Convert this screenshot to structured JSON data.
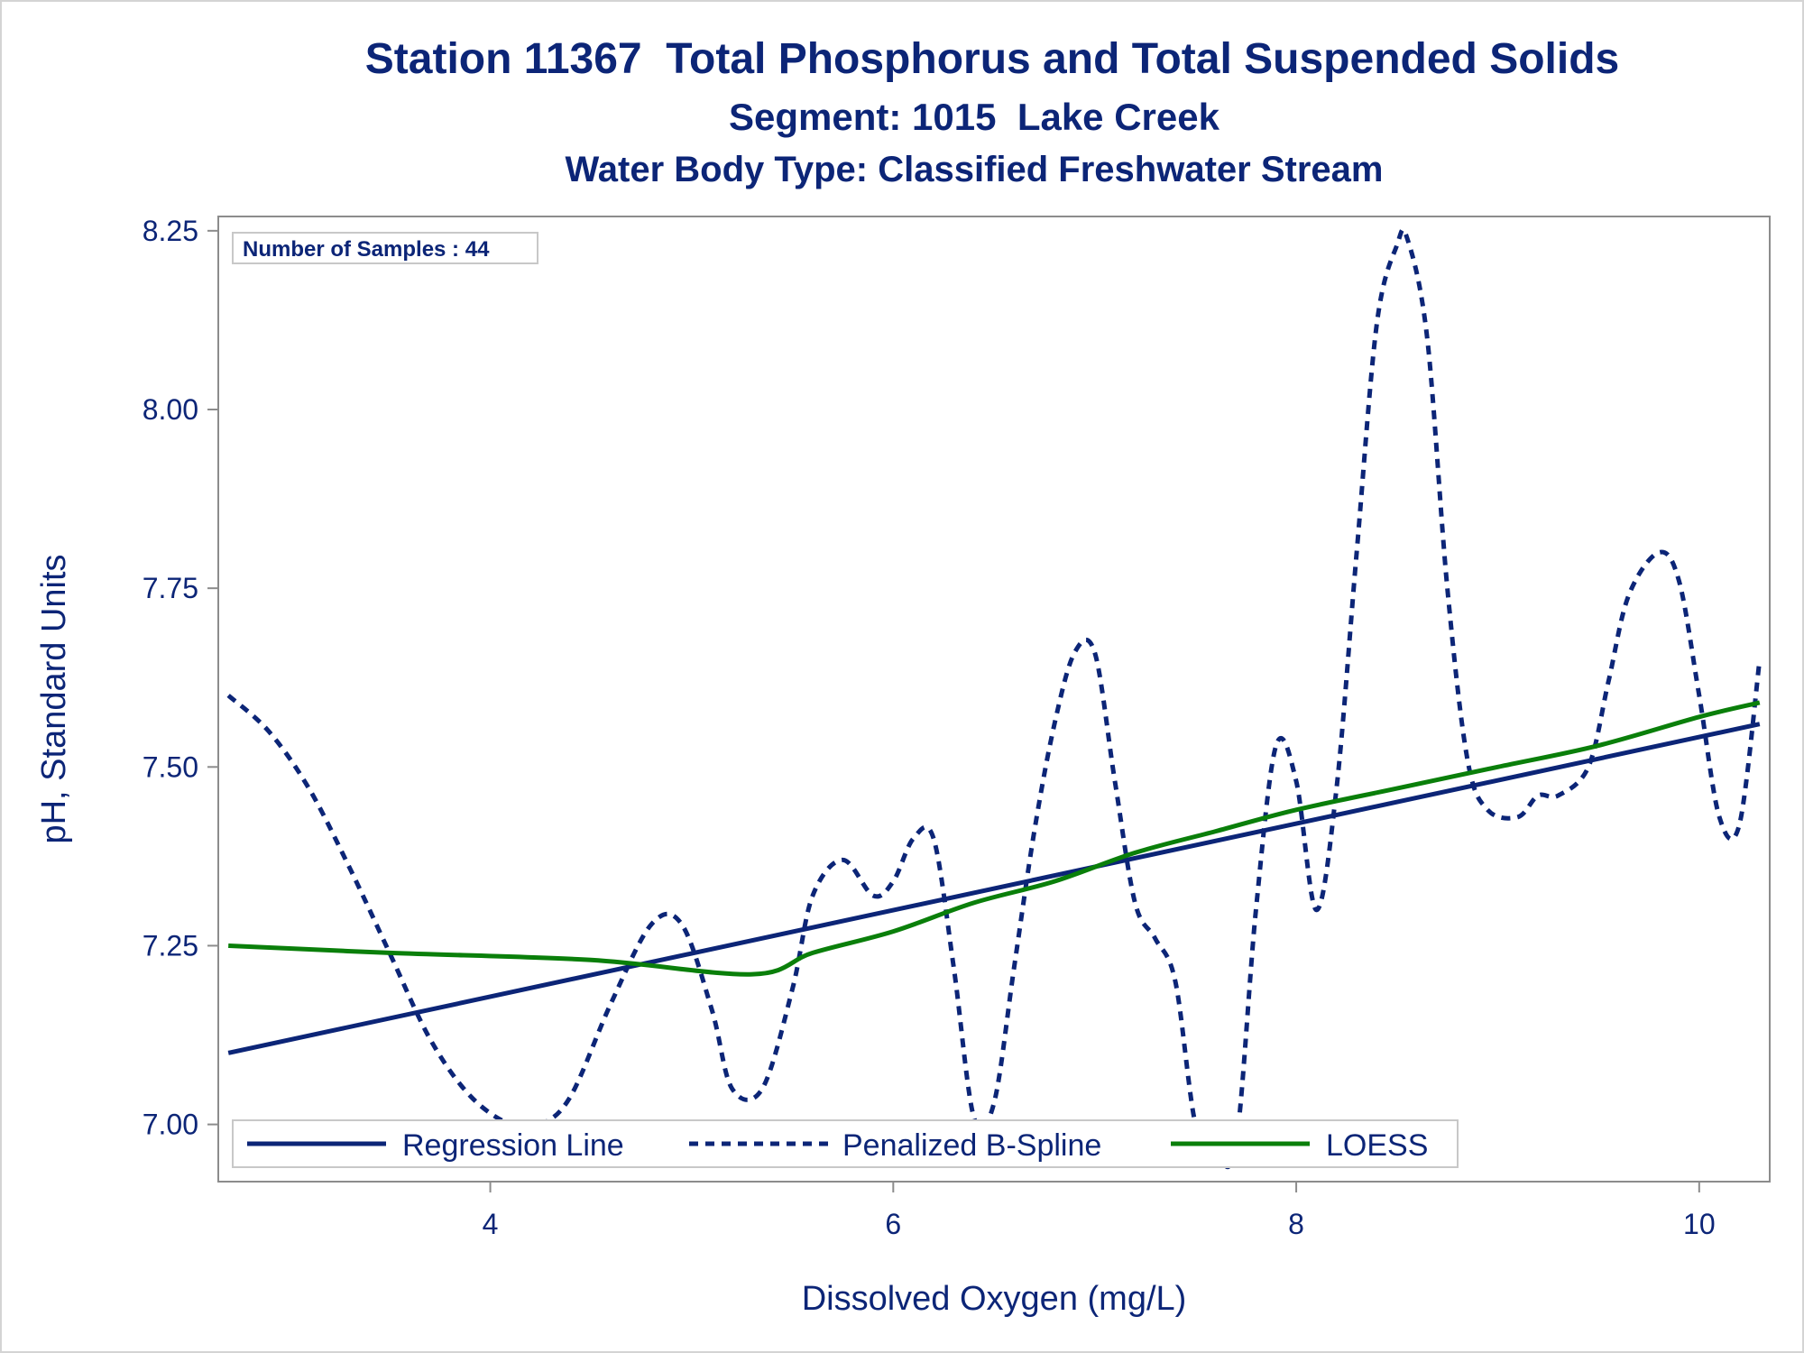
{
  "chart_data": {
    "type": "line",
    "title": "Station 11367  Total Phosphorus and Total Suspended Solids",
    "subtitle": "Segment: 1015  Lake Creek",
    "subtitle2": "Water Body Type: Classified Freshwater Stream",
    "xlabel": "Dissolved Oxygen (mg/L)",
    "ylabel": "pH, Standard Units",
    "xlim": [
      2.65,
      10.35
    ],
    "ylim": [
      6.92,
      8.27
    ],
    "xticks": [
      4,
      6,
      8,
      10
    ],
    "yticks": [
      7.0,
      7.25,
      7.5,
      7.75,
      8.0,
      8.25
    ],
    "ytick_labels": [
      "7.00",
      "7.25",
      "7.50",
      "7.75",
      "8.00",
      "8.25"
    ],
    "grid": false,
    "legend_position": "bottom-left inside",
    "inset_label": "Number of Samples : 44",
    "series": [
      {
        "name": "Regression Line",
        "color": "#0c2577",
        "style": "solid",
        "x": [
          2.7,
          10.3
        ],
        "y": [
          7.1,
          7.56
        ]
      },
      {
        "name": "Penalized B-Spline",
        "color": "#0c2577",
        "style": "dashed",
        "x": [
          2.7,
          2.9,
          3.1,
          3.3,
          3.5,
          3.7,
          3.9,
          4.1,
          4.25,
          4.4,
          4.6,
          4.8,
          4.95,
          5.1,
          5.2,
          5.35,
          5.5,
          5.6,
          5.75,
          5.9,
          6.0,
          6.1,
          6.2,
          6.3,
          6.4,
          6.5,
          6.6,
          6.7,
          6.8,
          6.9,
          7.0,
          7.1,
          7.2,
          7.3,
          7.4,
          7.5,
          7.6,
          7.7,
          7.8,
          7.9,
          8.0,
          8.1,
          8.2,
          8.3,
          8.4,
          8.5,
          8.55,
          8.65,
          8.75,
          8.85,
          8.95,
          9.1,
          9.2,
          9.3,
          9.45,
          9.55,
          9.65,
          9.8,
          9.9,
          10.0,
          10.1,
          10.2,
          10.3
        ],
        "y": [
          7.6,
          7.55,
          7.47,
          7.36,
          7.24,
          7.12,
          7.04,
          7.0,
          7.0,
          7.04,
          7.17,
          7.28,
          7.28,
          7.16,
          7.05,
          7.05,
          7.19,
          7.32,
          7.37,
          7.32,
          7.34,
          7.4,
          7.4,
          7.22,
          7.01,
          7.03,
          7.22,
          7.41,
          7.56,
          7.66,
          7.66,
          7.48,
          7.31,
          7.26,
          7.2,
          7.0,
          6.96,
          6.97,
          7.3,
          7.53,
          7.48,
          7.3,
          7.47,
          7.8,
          8.12,
          8.23,
          8.24,
          8.1,
          7.75,
          7.51,
          7.44,
          7.43,
          7.46,
          7.46,
          7.5,
          7.62,
          7.74,
          7.8,
          7.76,
          7.6,
          7.43,
          7.42,
          7.65
        ]
      },
      {
        "name": "LOESS",
        "color": "#0a7f0a",
        "style": "solid",
        "x": [
          2.7,
          3.5,
          4.5,
          5.3,
          5.6,
          6.0,
          6.4,
          6.8,
          7.2,
          7.6,
          8.0,
          8.5,
          9.0,
          9.5,
          10.0,
          10.3
        ],
        "y": [
          7.25,
          7.24,
          7.23,
          7.21,
          7.24,
          7.27,
          7.31,
          7.34,
          7.38,
          7.41,
          7.44,
          7.47,
          7.5,
          7.53,
          7.57,
          7.59
        ]
      }
    ]
  }
}
